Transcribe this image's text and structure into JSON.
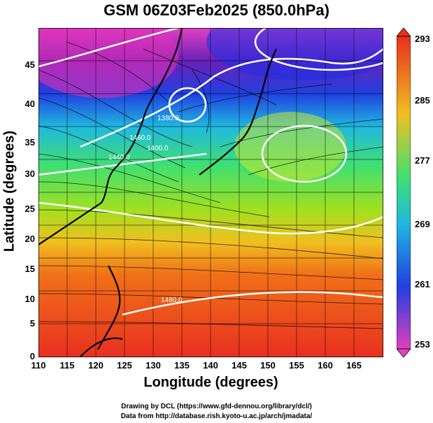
{
  "title": "GSM 06Z03Feb2025 (850.0hPa)",
  "xlabel": "Longitude (degrees)",
  "ylabel": "Latitude  (degrees)",
  "x_ticks": [
    "110",
    "115",
    "120",
    "125",
    "130",
    "135",
    "140",
    "145",
    "150",
    "155",
    "160",
    "165"
  ],
  "y_ticks": [
    "0",
    "5",
    "10",
    "15",
    "20",
    "25",
    "30",
    "35",
    "40",
    "45"
  ],
  "colorbar": {
    "labels": [
      "293",
      "285",
      "277",
      "269",
      "261",
      "253"
    ]
  },
  "contour_labels": [
    "1380.0",
    "1440.0",
    "1460.0",
    "1400.0",
    "1480.0"
  ],
  "credit_line1": "Drawing by DCL (https://www.gfd-dennou.org/library/dcl/)",
  "credit_line2": "Data from http://database.rish.kyoto-u.ac.jp/arch/jmadata/",
  "chart_data": {
    "type": "heatmap",
    "variable": "temperature",
    "xlim": [
      110,
      170
    ],
    "ylim": [
      0,
      50
    ],
    "clim": [
      253,
      293
    ],
    "colorbar_ticks": [
      253,
      261,
      269,
      277,
      285,
      293
    ]
  }
}
